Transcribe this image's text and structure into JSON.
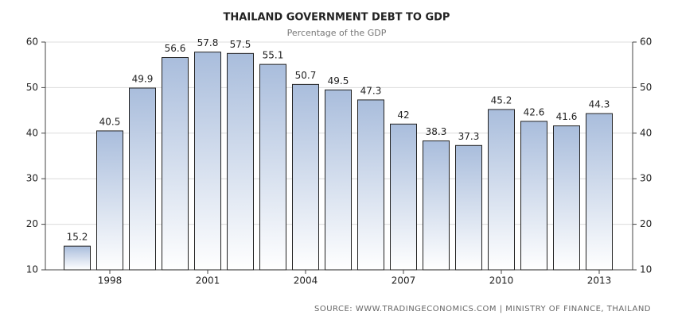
{
  "chart_data": {
    "type": "bar",
    "title": "THAILAND GOVERNMENT DEBT TO GDP",
    "subtitle": "Percentage of the GDP",
    "source": "SOURCE: WWW.TRADINGECONOMICS.COM | MINISTRY OF FINANCE, THAILAND",
    "categories": [
      null,
      "1998",
      null,
      null,
      "2001",
      null,
      null,
      "2004",
      null,
      null,
      "2007",
      null,
      null,
      "2010",
      null,
      null,
      "2013"
    ],
    "values": [
      15.2,
      40.5,
      49.9,
      56.6,
      57.8,
      57.5,
      55.1,
      50.7,
      49.5,
      47.3,
      42,
      38.3,
      37.3,
      45.2,
      42.6,
      41.6,
      44.3
    ],
    "color": "#a9bddc",
    "ylim": [
      10,
      60
    ],
    "yticks": [
      10,
      20,
      30,
      40,
      50,
      60
    ],
    "grid": true
  }
}
